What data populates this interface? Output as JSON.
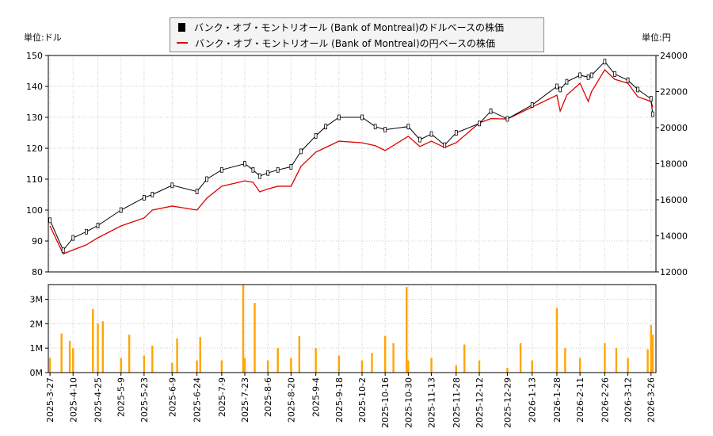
{
  "chart_data": [
    {
      "type": "line",
      "legend": [
        "バンク・オブ・モントリオール (Bank of Montreal)のドルベースの株価",
        "バンク・オブ・モントリオール (Bank of Montreal)の円ベースの株価"
      ],
      "legend_placement": "top-center",
      "left_unit": "単位:ドル",
      "right_unit": "単位:円",
      "ylim_left": [
        80,
        150
      ],
      "ylim_right": [
        12000,
        24000
      ],
      "yticks_left": [
        "80",
        "90",
        "100",
        "110",
        "120",
        "130",
        "140",
        "150"
      ],
      "yticks_right": [
        "12000",
        "14000",
        "16000",
        "18000",
        "20000",
        "22000",
        "24000"
      ],
      "xlim": [
        "2025-03-26",
        "2026-03-29"
      ],
      "grid": true,
      "colors": {
        "usd": "#000000",
        "jpy": "#e00000"
      },
      "points": [
        [
          "2025-03-27",
          96.7,
          14550
        ],
        [
          "2025-04-04",
          87,
          13000
        ],
        [
          "2025-04-10",
          91,
          13220
        ],
        [
          "2025-04-18",
          93,
          13500
        ],
        [
          "2025-04-25",
          95,
          13890
        ],
        [
          "2025-05-09",
          100,
          14550
        ],
        [
          "2025-05-23",
          104,
          14990
        ],
        [
          "2025-05-28",
          105,
          15430
        ],
        [
          "2025-06-09",
          108,
          15650
        ],
        [
          "2025-06-24",
          106,
          15430
        ],
        [
          "2025-06-30",
          110,
          16090
        ],
        [
          "2025-07-09",
          113,
          16750
        ],
        [
          "2025-07-23",
          115,
          17050
        ],
        [
          "2025-07-28",
          113,
          16970
        ],
        [
          "2025-08-01",
          111,
          16440
        ],
        [
          "2025-08-06",
          112,
          16600
        ],
        [
          "2025-08-12",
          113,
          16750
        ],
        [
          "2025-08-20",
          114,
          16750
        ],
        [
          "2025-08-26",
          119,
          17850
        ],
        [
          "2025-09-04",
          124,
          18640
        ],
        [
          "2025-09-10",
          127,
          18900
        ],
        [
          "2025-09-18",
          130,
          19250
        ],
        [
          "2025-10-02",
          130,
          19160
        ],
        [
          "2025-10-10",
          127,
          19000
        ],
        [
          "2025-10-16",
          126,
          18730
        ],
        [
          "2025-10-30",
          127,
          19520
        ],
        [
          "2025-11-06",
          122.8,
          18950
        ],
        [
          "2025-11-13",
          124.6,
          19250
        ],
        [
          "2025-11-21",
          121,
          18900
        ],
        [
          "2025-11-28",
          125,
          19160
        ],
        [
          "2025-12-12",
          128,
          20260
        ],
        [
          "2025-12-19",
          132,
          20500
        ],
        [
          "2025-12-29",
          129.5,
          20480
        ],
        [
          "2026-01-13",
          134,
          21140
        ],
        [
          "2026-01-28",
          140,
          21800
        ],
        [
          "2026-01-30",
          139,
          20920
        ],
        [
          "2026-02-03",
          141.5,
          21800
        ],
        [
          "2026-02-11",
          143.6,
          22460
        ],
        [
          "2026-02-16",
          143,
          21450
        ],
        [
          "2026-02-18",
          143.6,
          22000
        ],
        [
          "2026-02-26",
          148,
          23210
        ],
        [
          "2026-03-04",
          144,
          22680
        ],
        [
          "2026-03-12",
          142,
          22460
        ],
        [
          "2026-03-18",
          139,
          21710
        ],
        [
          "2026-03-26",
          136,
          21450
        ],
        [
          "2026-03-27",
          131,
          21140
        ]
      ]
    },
    {
      "type": "bar",
      "ylim": [
        0,
        3.6
      ],
      "yticks": [
        "0M",
        "1M",
        "2M",
        "3M"
      ],
      "color": "#ffa500",
      "xticks": [
        "2025-3-27",
        "2025-4-10",
        "2025-4-25",
        "2025-5-9",
        "2025-5-23",
        "2025-6-9",
        "2025-6-24",
        "2025-7-9",
        "2025-7-23",
        "2025-8-6",
        "2025-8-20",
        "2025-9-4",
        "2025-9-18",
        "2025-10-2",
        "2025-10-16",
        "2025-10-30",
        "2025-11-13",
        "2025-11-28",
        "2025-12-12",
        "2025-12-29",
        "2026-1-13",
        "2026-1-28",
        "2026-2-11",
        "2026-2-26",
        "2026-3-12",
        "2026-3-26"
      ],
      "volume_millions": [
        [
          "2025-03-27",
          0.6
        ],
        [
          "2025-04-03",
          1.6
        ],
        [
          "2025-04-08",
          1.3
        ],
        [
          "2025-04-10",
          1.0
        ],
        [
          "2025-04-22",
          2.6
        ],
        [
          "2025-04-25",
          2.0
        ],
        [
          "2025-04-28",
          2.1
        ],
        [
          "2025-05-09",
          0.6
        ],
        [
          "2025-05-14",
          1.55
        ],
        [
          "2025-05-23",
          0.7
        ],
        [
          "2025-05-28",
          1.1
        ],
        [
          "2025-06-09",
          0.4
        ],
        [
          "2025-06-12",
          1.4
        ],
        [
          "2025-06-24",
          0.5
        ],
        [
          "2025-06-26",
          1.45
        ],
        [
          "2025-07-09",
          0.5
        ],
        [
          "2025-07-22",
          3.6
        ],
        [
          "2025-07-23",
          0.6
        ],
        [
          "2025-07-29",
          2.85
        ],
        [
          "2025-08-06",
          0.5
        ],
        [
          "2025-08-12",
          1.0
        ],
        [
          "2025-08-20",
          0.6
        ],
        [
          "2025-08-25",
          1.5
        ],
        [
          "2025-09-04",
          1.0
        ],
        [
          "2025-09-18",
          0.7
        ],
        [
          "2025-10-02",
          0.5
        ],
        [
          "2025-10-08",
          0.8
        ],
        [
          "2025-10-16",
          1.5
        ],
        [
          "2025-10-21",
          1.2
        ],
        [
          "2025-10-29",
          3.5
        ],
        [
          "2025-10-30",
          0.5
        ],
        [
          "2025-11-13",
          0.6
        ],
        [
          "2025-11-28",
          0.3
        ],
        [
          "2025-12-03",
          1.15
        ],
        [
          "2025-12-12",
          0.5
        ],
        [
          "2025-12-29",
          0.2
        ],
        [
          "2026-01-06",
          1.2
        ],
        [
          "2026-01-13",
          0.5
        ],
        [
          "2026-01-28",
          2.65
        ],
        [
          "2026-02-02",
          1.0
        ],
        [
          "2026-02-11",
          0.6
        ],
        [
          "2026-02-26",
          1.2
        ],
        [
          "2026-03-05",
          1.0
        ],
        [
          "2026-03-12",
          0.6
        ],
        [
          "2026-03-24",
          0.95
        ],
        [
          "2026-03-26",
          1.95
        ],
        [
          "2026-03-27",
          1.55
        ]
      ]
    }
  ]
}
